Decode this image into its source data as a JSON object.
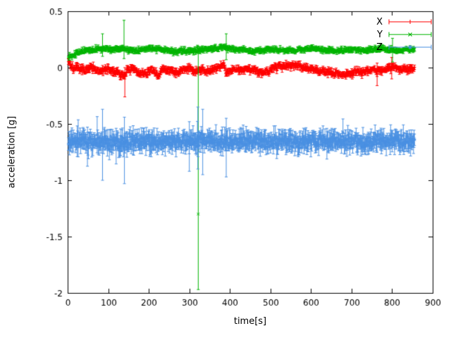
{
  "figure": {
    "background": "#ffffff",
    "axis_color": "#000000"
  },
  "chart_data": {
    "type": "scatter",
    "plot_style": "points-with-errorbars",
    "title": "",
    "xlabel": "time[s]",
    "ylabel": "acceleration [g]",
    "xlim": [
      0,
      900
    ],
    "ylim": [
      -2,
      0.5
    ],
    "xticks": [
      0,
      100,
      200,
      300,
      400,
      500,
      600,
      700,
      800,
      900
    ],
    "xtick_labels": [
      "0",
      "100",
      "200",
      "300",
      "400",
      "500",
      "600",
      "700",
      "800",
      "900"
    ],
    "yticks": [
      -2,
      -1.5,
      -1,
      -0.5,
      0,
      0.5
    ],
    "ytick_labels": [
      "-2",
      "-1.5",
      "-1",
      "-0.5",
      "0",
      "0.5"
    ],
    "grid": false,
    "legend": {
      "position": "top-right-inside"
    },
    "t_start": 2,
    "t_end": 856,
    "t_step": 1.2,
    "series": [
      {
        "name": "X",
        "color": "#ff0000",
        "marker": "plus",
        "seed": 7,
        "noise": 0.013,
        "err": 0.018,
        "keyframes": [
          [
            0,
            0.08
          ],
          [
            5,
            0.04
          ],
          [
            12,
            0.0
          ],
          [
            40,
            -0.02
          ],
          [
            60,
            0.0
          ],
          [
            75,
            -0.04
          ],
          [
            90,
            -0.01
          ],
          [
            105,
            -0.02
          ],
          [
            125,
            -0.05
          ],
          [
            140,
            -0.07
          ],
          [
            148,
            -0.02
          ],
          [
            165,
            -0.02
          ],
          [
            180,
            -0.05
          ],
          [
            195,
            -0.06
          ],
          [
            205,
            -0.02
          ],
          [
            225,
            -0.07
          ],
          [
            235,
            -0.01
          ],
          [
            250,
            -0.02
          ],
          [
            265,
            -0.05
          ],
          [
            285,
            -0.02
          ],
          [
            300,
            -0.01
          ],
          [
            315,
            -0.03
          ],
          [
            330,
            -0.02
          ],
          [
            345,
            -0.03
          ],
          [
            360,
            -0.01
          ],
          [
            375,
            0.01
          ],
          [
            385,
            0.02
          ],
          [
            392,
            -0.04
          ],
          [
            400,
            -0.03
          ],
          [
            415,
            -0.01
          ],
          [
            430,
            -0.02
          ],
          [
            450,
            -0.01
          ],
          [
            465,
            -0.03
          ],
          [
            480,
            -0.04
          ],
          [
            495,
            -0.03
          ],
          [
            510,
            0.0
          ],
          [
            525,
            0.02
          ],
          [
            545,
            0.02
          ],
          [
            560,
            0.03
          ],
          [
            575,
            0.01
          ],
          [
            590,
            -0.01
          ],
          [
            605,
            -0.02
          ],
          [
            625,
            -0.03
          ],
          [
            645,
            -0.05
          ],
          [
            665,
            -0.05
          ],
          [
            680,
            -0.06
          ],
          [
            695,
            -0.05
          ],
          [
            710,
            -0.03
          ],
          [
            725,
            -0.04
          ],
          [
            745,
            -0.02
          ],
          [
            760,
            -0.02
          ],
          [
            775,
            -0.03
          ],
          [
            790,
            0.0
          ],
          [
            805,
            0.0
          ],
          [
            820,
            -0.02
          ],
          [
            840,
            -0.01
          ],
          [
            855,
            -0.01
          ]
        ],
        "spikes": [
          {
            "t": 141,
            "y": -0.08,
            "lo": -0.26,
            "hi": 0.0
          },
          {
            "t": 763,
            "y": -0.03,
            "lo": -0.16,
            "hi": 0.04
          },
          {
            "t": 799,
            "y": 0.0,
            "lo": -0.1,
            "hi": 0.09
          }
        ]
      },
      {
        "name": "Y",
        "color": "#00b400",
        "marker": "cross",
        "seed": 13,
        "noise": 0.009,
        "err": 0.014,
        "keyframes": [
          [
            0,
            0.1
          ],
          [
            10,
            0.11
          ],
          [
            25,
            0.13
          ],
          [
            45,
            0.15
          ],
          [
            70,
            0.16
          ],
          [
            90,
            0.17
          ],
          [
            110,
            0.16
          ],
          [
            130,
            0.17
          ],
          [
            150,
            0.16
          ],
          [
            170,
            0.15
          ],
          [
            190,
            0.16
          ],
          [
            210,
            0.17
          ],
          [
            230,
            0.16
          ],
          [
            250,
            0.15
          ],
          [
            270,
            0.14
          ],
          [
            290,
            0.15
          ],
          [
            310,
            0.15
          ],
          [
            330,
            0.16
          ],
          [
            350,
            0.17
          ],
          [
            370,
            0.17
          ],
          [
            385,
            0.19
          ],
          [
            395,
            0.17
          ],
          [
            410,
            0.16
          ],
          [
            430,
            0.16
          ],
          [
            450,
            0.15
          ],
          [
            470,
            0.15
          ],
          [
            490,
            0.16
          ],
          [
            510,
            0.16
          ],
          [
            530,
            0.15
          ],
          [
            550,
            0.15
          ],
          [
            570,
            0.16
          ],
          [
            590,
            0.16
          ],
          [
            610,
            0.17
          ],
          [
            630,
            0.16
          ],
          [
            650,
            0.15
          ],
          [
            670,
            0.15
          ],
          [
            690,
            0.16
          ],
          [
            710,
            0.16
          ],
          [
            730,
            0.15
          ],
          [
            750,
            0.16
          ],
          [
            770,
            0.17
          ],
          [
            790,
            0.16
          ],
          [
            810,
            0.15
          ],
          [
            830,
            0.16
          ],
          [
            855,
            0.16
          ]
        ],
        "spikes": [
          {
            "t": 86,
            "y": 0.18,
            "lo": 0.1,
            "hi": 0.3
          },
          {
            "t": 139,
            "y": 0.18,
            "lo": 0.08,
            "hi": 0.42
          },
          {
            "t": 322,
            "y": -1.3,
            "lo": -1.97,
            "hi": 0.14
          },
          {
            "t": 391,
            "y": 0.18,
            "lo": 0.07,
            "hi": 0.3
          },
          {
            "t": 801,
            "y": 0.16,
            "lo": 0.05,
            "hi": 0.26
          }
        ]
      },
      {
        "name": "Z",
        "color": "#4a90e2",
        "marker": "asterisk",
        "seed": 21,
        "noise": 0.028,
        "err": 0.055,
        "wild": {
          "prob": 0.03,
          "mult": 1.8
        },
        "wild_early": {
          "t_max": 215,
          "prob": 0.08,
          "mult": 1.9
        },
        "keyframes": [
          [
            0,
            -0.66
          ],
          [
            40,
            -0.65
          ],
          [
            80,
            -0.66
          ],
          [
            120,
            -0.67
          ],
          [
            160,
            -0.66
          ],
          [
            200,
            -0.65
          ],
          [
            240,
            -0.66
          ],
          [
            280,
            -0.66
          ],
          [
            320,
            -0.64
          ],
          [
            360,
            -0.66
          ],
          [
            400,
            -0.66
          ],
          [
            440,
            -0.65
          ],
          [
            480,
            -0.66
          ],
          [
            520,
            -0.65
          ],
          [
            560,
            -0.66
          ],
          [
            600,
            -0.66
          ],
          [
            640,
            -0.65
          ],
          [
            680,
            -0.65
          ],
          [
            720,
            -0.66
          ],
          [
            760,
            -0.65
          ],
          [
            800,
            -0.65
          ],
          [
            830,
            -0.66
          ],
          [
            855,
            -0.65
          ]
        ],
        "spikes": [
          {
            "t": 86,
            "y": -0.66,
            "lo": -1.0,
            "hi": -0.37
          },
          {
            "t": 140,
            "y": -0.68,
            "lo": -1.03,
            "hi": -0.44
          },
          {
            "t": 300,
            "y": -0.66,
            "lo": -0.92,
            "hi": -0.48
          },
          {
            "t": 321,
            "y": -0.63,
            "lo": -0.9,
            "hi": -0.35
          },
          {
            "t": 333,
            "y": -0.64,
            "lo": -0.95,
            "hi": -0.37
          },
          {
            "t": 391,
            "y": -0.67,
            "lo": -0.97,
            "hi": -0.45
          }
        ]
      }
    ]
  }
}
